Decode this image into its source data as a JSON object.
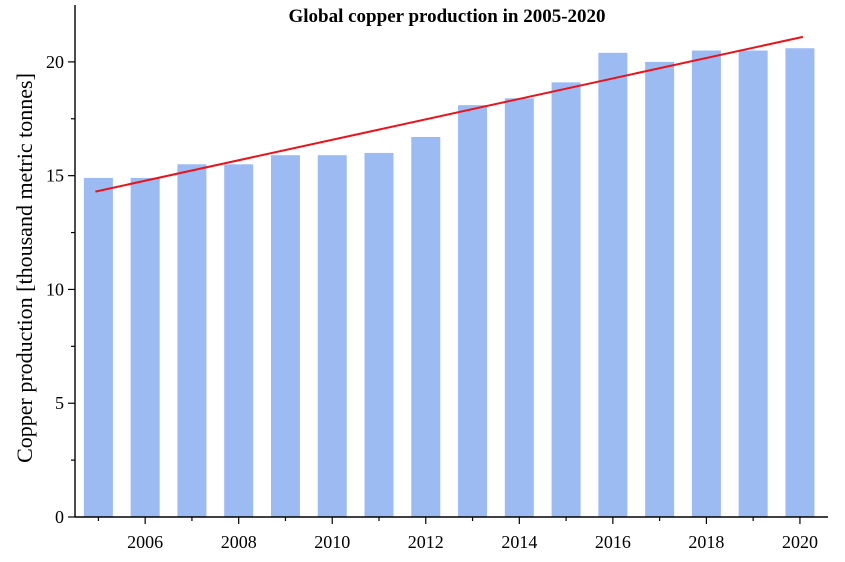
{
  "chart_data": {
    "type": "bar",
    "title": "Global copper production in 2005-2020",
    "xlabel": "",
    "ylabel": "Copper production [thousand metric tonnes]",
    "categories": [
      "2005",
      "2006",
      "2007",
      "2008",
      "2009",
      "2010",
      "2011",
      "2012",
      "2013",
      "2014",
      "2015",
      "2016",
      "2017",
      "2018",
      "2019",
      "2020"
    ],
    "series": [
      {
        "values": [
          14.9,
          14.9,
          15.5,
          15.5,
          15.9,
          15.9,
          16.0,
          16.7,
          18.1,
          18.4,
          19.1,
          20.4,
          20.0,
          20.5,
          20.5,
          20.6
        ],
        "color": "#9dbbf3"
      }
    ],
    "trendline": {
      "x": [
        2005,
        2020
      ],
      "y": [
        14.3,
        21.1
      ],
      "color": "#e8141c"
    },
    "x_tick_labels": [
      "2006",
      "2008",
      "2010",
      "2012",
      "2014",
      "2016",
      "2018",
      "2020"
    ],
    "y_ticks": [
      0,
      5,
      10,
      15,
      20
    ],
    "ylim": [
      0,
      22.5
    ],
    "xlim": [
      2004.5,
      2020.6
    ],
    "grid": false,
    "legend": "none"
  }
}
